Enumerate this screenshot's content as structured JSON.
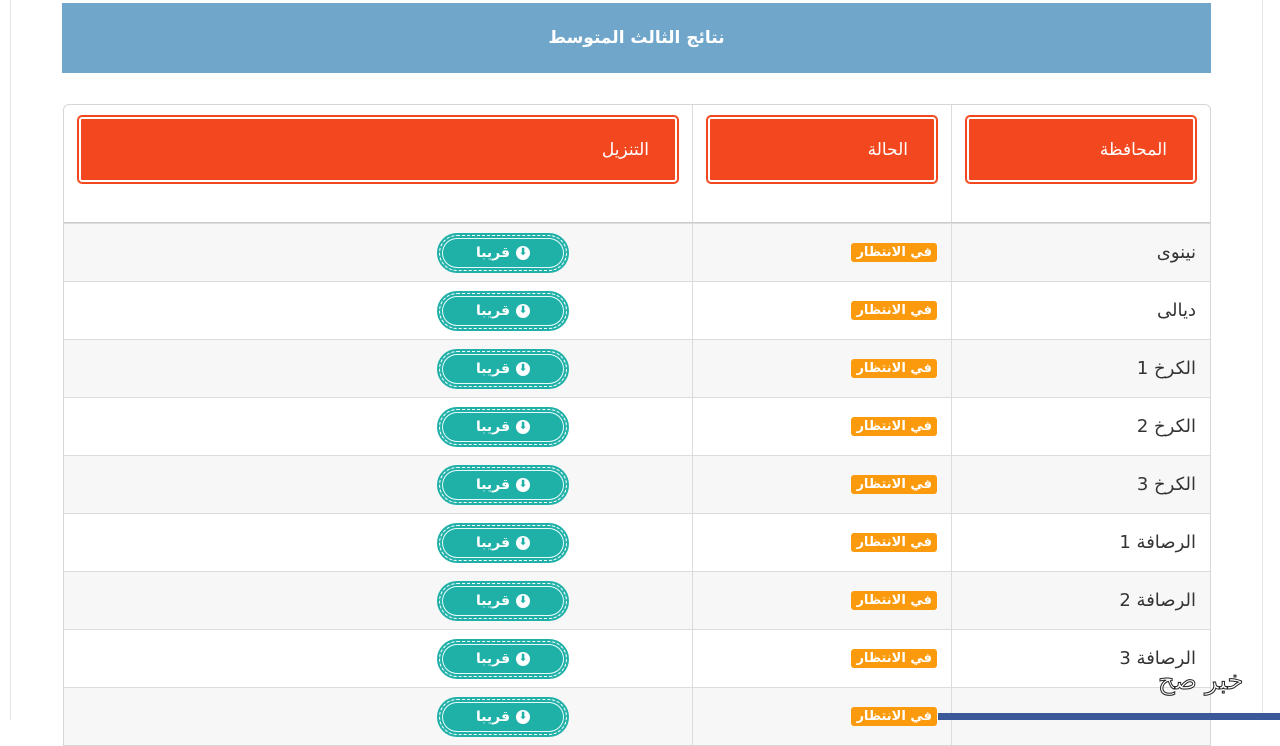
{
  "title": "نتائج الثالث المتوسط",
  "headers": {
    "province": "المحافظة",
    "status": "الحالة",
    "download": "التنزيل"
  },
  "rows": [
    {
      "province": "نينوى",
      "status": "في الانتظار",
      "download": "قريبا"
    },
    {
      "province": "ديالى",
      "status": "في الانتظار",
      "download": "قريبا"
    },
    {
      "province": "الكرخ 1",
      "status": "في الانتظار",
      "download": "قريبا"
    },
    {
      "province": "الكرخ 2",
      "status": "في الانتظار",
      "download": "قريبا"
    },
    {
      "province": "الكرخ 3",
      "status": "في الانتظار",
      "download": "قريبا"
    },
    {
      "province": "الرصافة 1",
      "status": "في الانتظار",
      "download": "قريبا"
    },
    {
      "province": "الرصافة 2",
      "status": "في الانتظار",
      "download": "قريبا"
    },
    {
      "province": "الرصافة 3",
      "status": "في الانتظار",
      "download": "قريبا"
    },
    {
      "province": "",
      "status": "في الانتظار",
      "download": "قريبا"
    }
  ],
  "watermark": "خبر صح",
  "colors": {
    "banner": "#6fa6ca",
    "header_button": "#f2471f",
    "badge": "#fb9a0c",
    "download_button": "#1fb0a8"
  }
}
